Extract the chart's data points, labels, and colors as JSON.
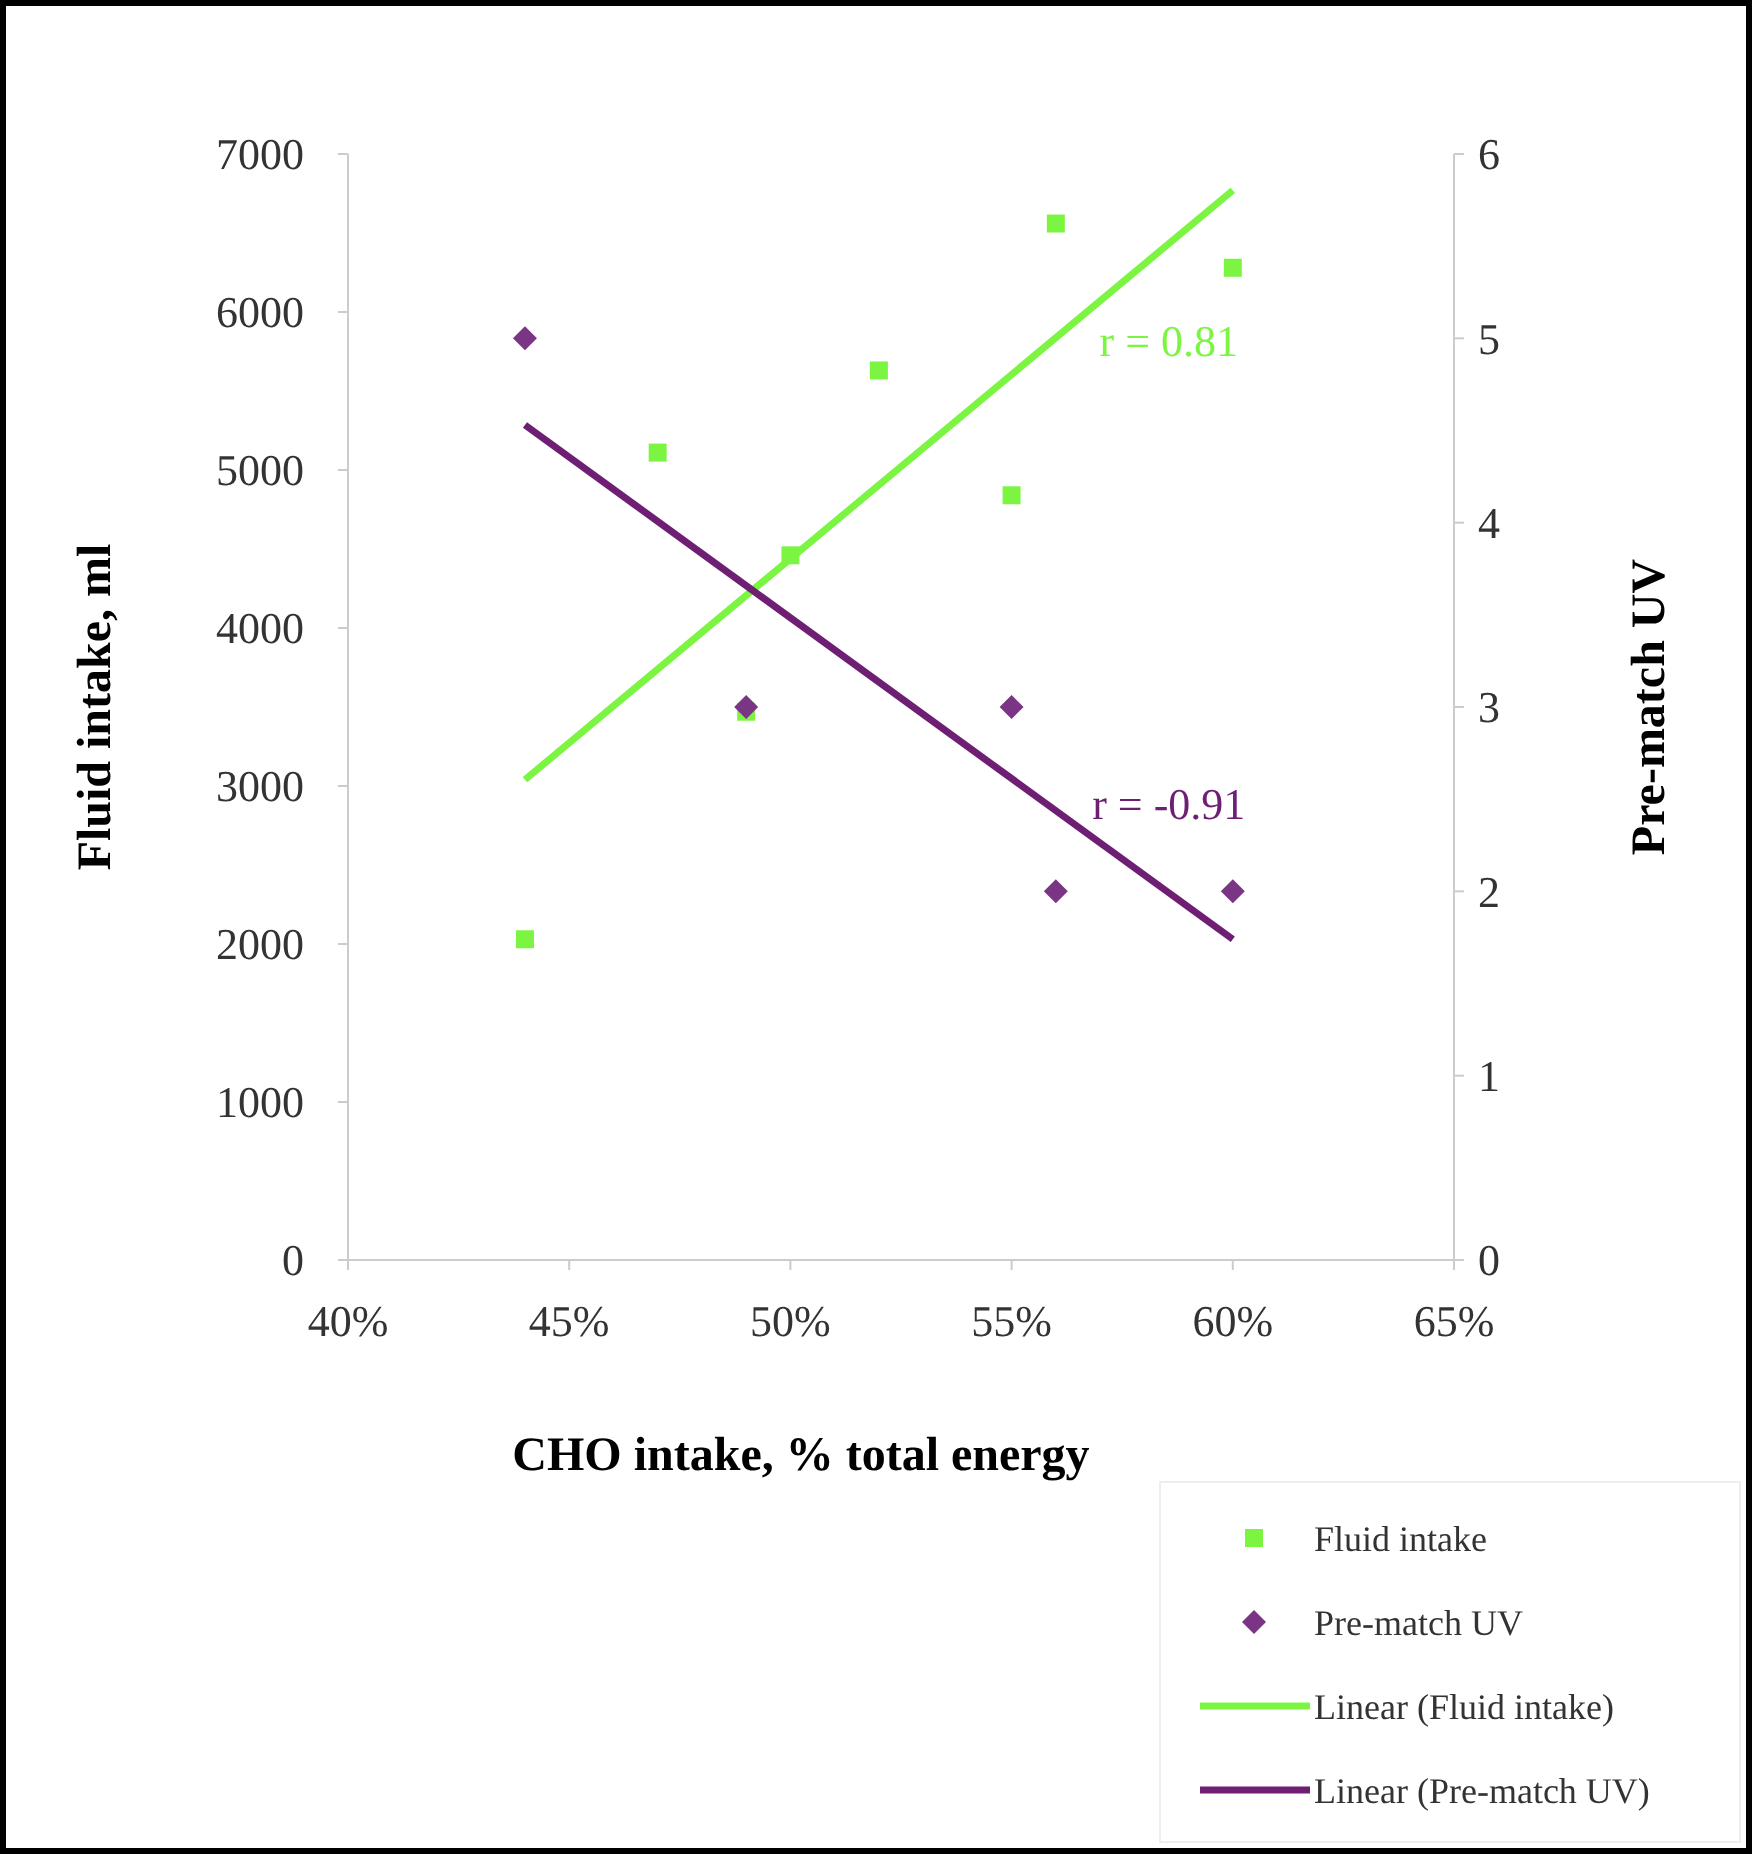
{
  "chart_data": {
    "type": "scatter",
    "xlabel": "CHO intake, % total energy",
    "ylabel": "Fluid intake, ml",
    "y2label": "Pre-match UV",
    "xlim": [
      40,
      65
    ],
    "xticks": [
      {
        "value": 40,
        "label": "40%"
      },
      {
        "value": 45,
        "label": "45%"
      },
      {
        "value": 50,
        "label": "50%"
      },
      {
        "value": 55,
        "label": "55%"
      },
      {
        "value": 60,
        "label": "60%"
      },
      {
        "value": 65,
        "label": "65%"
      }
    ],
    "ylim": [
      0,
      7000
    ],
    "yticks": [
      0,
      1000,
      2000,
      3000,
      4000,
      5000,
      6000,
      7000
    ],
    "y2lim": [
      0,
      6
    ],
    "y2ticks": [
      0,
      1,
      2,
      3,
      4,
      5,
      6
    ],
    "grid": false,
    "legend": "bottom right",
    "series": [
      {
        "name": "Fluid intake",
        "marker": "square",
        "color": "#7cf542",
        "x": [
          44,
          47,
          49,
          50,
          52,
          55,
          56,
          60
        ],
        "values": [
          2030,
          5110,
          3470,
          4460,
          5630,
          4840,
          6560,
          6280
        ]
      },
      {
        "name": "Pre-match UV",
        "marker": "diamond",
        "color": "#7b3585",
        "axis": "y2",
        "x": [
          44,
          49,
          55,
          56,
          60
        ],
        "values": [
          5,
          3,
          3,
          2,
          2
        ]
      },
      {
        "name": "Linear (Fluid intake)",
        "type": "line",
        "marker": "none",
        "color": "#7cf542",
        "x": [
          44,
          60
        ],
        "values": [
          3040,
          6770
        ]
      },
      {
        "name": "Linear (Pre-match UV)",
        "type": "line",
        "marker": "none",
        "color": "#6e1f74",
        "axis": "y2",
        "x": [
          44,
          60
        ],
        "values": [
          4.53,
          1.74
        ]
      }
    ],
    "annotations": [
      "r = 0.81",
      "r = -0.91"
    ]
  }
}
